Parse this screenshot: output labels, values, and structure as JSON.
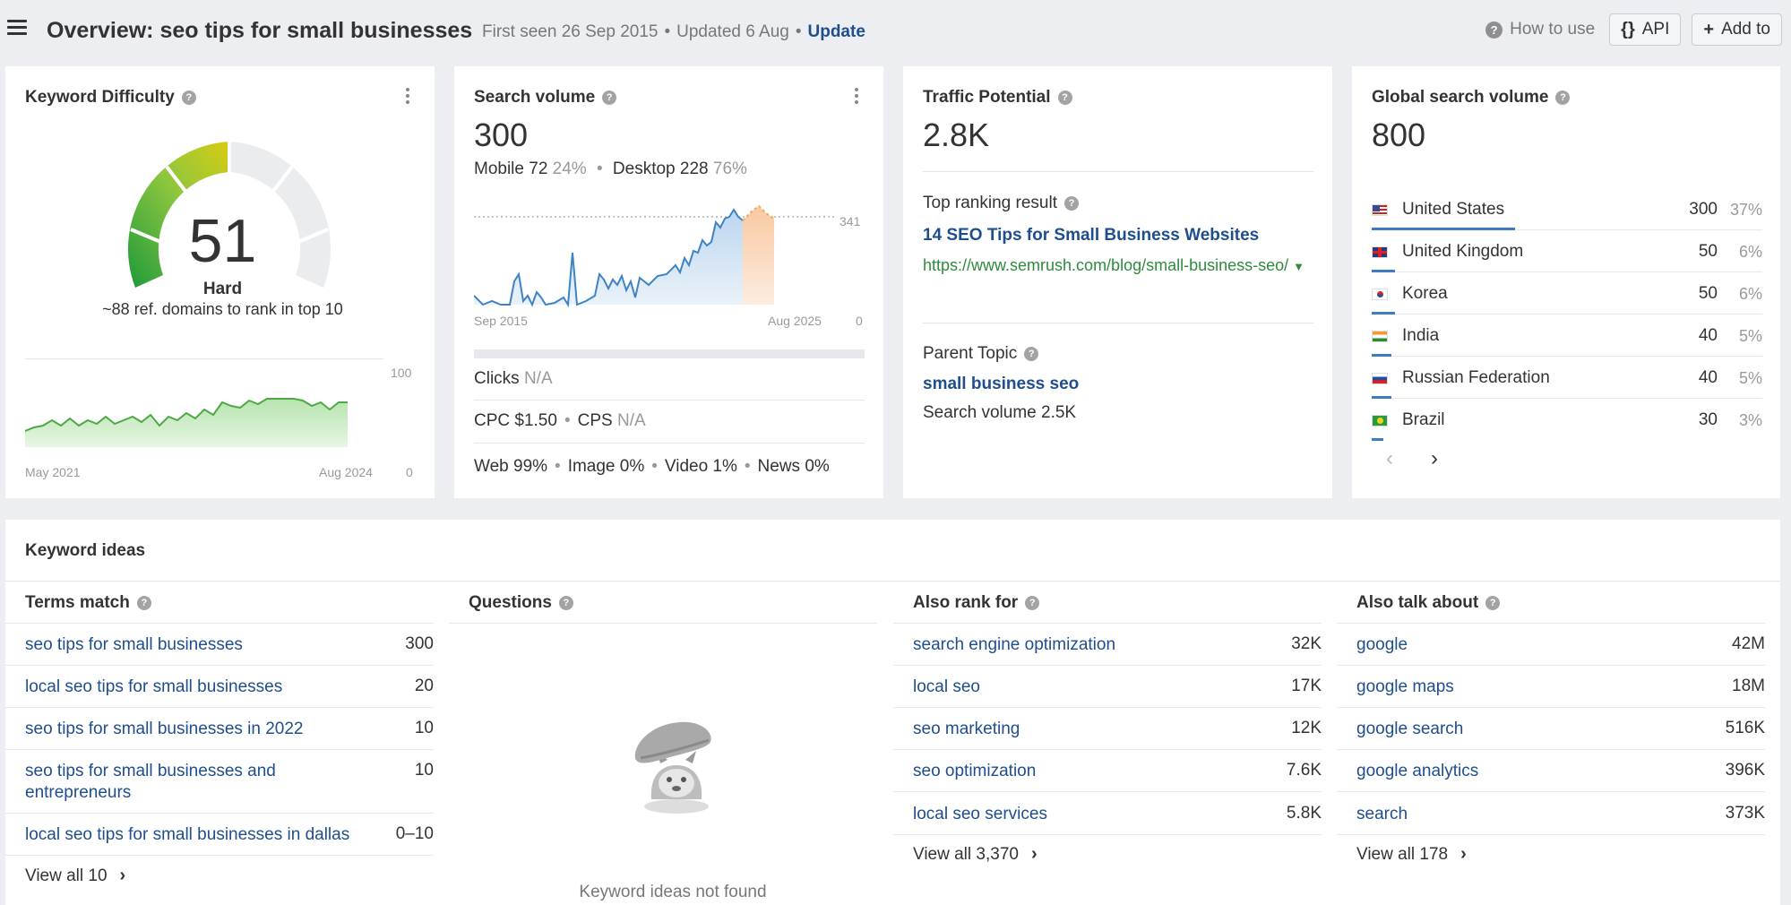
{
  "header": {
    "title": "Overview: seo tips for small businesses",
    "first_seen": "First seen 26 Sep 2015",
    "updated": "Updated 6 Aug",
    "update_link": "Update",
    "how_to_use": "How to use",
    "api_label": "API",
    "add_to_label": "Add to"
  },
  "kd": {
    "title": "Keyword Difficulty",
    "value": "51",
    "level": "Hard",
    "subtitle": "~88 ref. domains to rank in top 10",
    "chart_start": "May 2021",
    "chart_end": "Aug 2024",
    "y_max": "100",
    "y_min": "0"
  },
  "sv": {
    "title": "Search volume",
    "value": "300",
    "mobile_label": "Mobile 72",
    "mobile_pct": "24%",
    "desktop_label": "Desktop 228",
    "desktop_pct": "76%",
    "chart_start": "Sep 2015",
    "chart_end": "Aug 2025",
    "y_max": "341",
    "y_min": "0",
    "clicks_label": "Clicks",
    "clicks_value": "N/A",
    "cpc": "CPC $1.50",
    "cps_label": "CPS",
    "cps_value": "N/A",
    "web": "Web 99%",
    "image": "Image 0%",
    "video": "Video 1%",
    "news": "News 0%"
  },
  "tp": {
    "title": "Traffic Potential",
    "value": "2.8K",
    "top_result_label": "Top ranking result",
    "top_result_title": "14 SEO Tips for Small Business Websites",
    "top_result_url": "https://www.semrush.com/blog/small-business-seo/",
    "parent_label": "Parent Topic",
    "parent_topic": "small business seo",
    "parent_volume": "Search volume 2.5K"
  },
  "gsv": {
    "title": "Global search volume",
    "value": "800",
    "countries": [
      {
        "name": "United States",
        "value": "300",
        "pct": "37%",
        "share": 0.37
      },
      {
        "name": "United Kingdom",
        "value": "50",
        "pct": "6%",
        "share": 0.06
      },
      {
        "name": "Korea",
        "value": "50",
        "pct": "6%",
        "share": 0.06
      },
      {
        "name": "India",
        "value": "40",
        "pct": "5%",
        "share": 0.05
      },
      {
        "name": "Russian Federation",
        "value": "40",
        "pct": "5%",
        "share": 0.05
      },
      {
        "name": "Brazil",
        "value": "30",
        "pct": "3%",
        "share": 0.03
      }
    ]
  },
  "ideas": {
    "title": "Keyword ideas",
    "terms": {
      "title": "Terms match",
      "rows": [
        {
          "kw": "seo tips for small businesses",
          "v": "300"
        },
        {
          "kw": "local seo tips for small businesses",
          "v": "20"
        },
        {
          "kw": "seo tips for small businesses in 2022",
          "v": "10"
        },
        {
          "kw": "seo tips for small businesses and entrepreneurs",
          "v": "10"
        },
        {
          "kw": "local seo tips for small businesses in dallas",
          "v": "0–10"
        }
      ],
      "view_all": "View all 10"
    },
    "questions": {
      "title": "Questions",
      "empty": "Keyword ideas not found"
    },
    "also_rank": {
      "title": "Also rank for",
      "rows": [
        {
          "kw": "search engine optimization",
          "v": "32K"
        },
        {
          "kw": "local seo",
          "v": "17K"
        },
        {
          "kw": "seo marketing",
          "v": "12K"
        },
        {
          "kw": "seo optimization",
          "v": "7.6K"
        },
        {
          "kw": "local seo services",
          "v": "5.8K"
        }
      ],
      "view_all": "View all 3,370"
    },
    "also_talk": {
      "title": "Also talk about",
      "rows": [
        {
          "kw": "google",
          "v": "42M"
        },
        {
          "kw": "google maps",
          "v": "18M"
        },
        {
          "kw": "google search",
          "v": "516K"
        },
        {
          "kw": "google analytics",
          "v": "396K"
        },
        {
          "kw": "search",
          "v": "373K"
        }
      ],
      "view_all": "View all 178"
    }
  },
  "colors": {
    "link": "#1f4e8c",
    "url_green": "#2e8b3e",
    "kd_green": "#3aa63a",
    "kd_yellow": "#d6cc1a",
    "sv_blue": "#3d84c6",
    "forecast_orange": "#f0a860"
  }
}
